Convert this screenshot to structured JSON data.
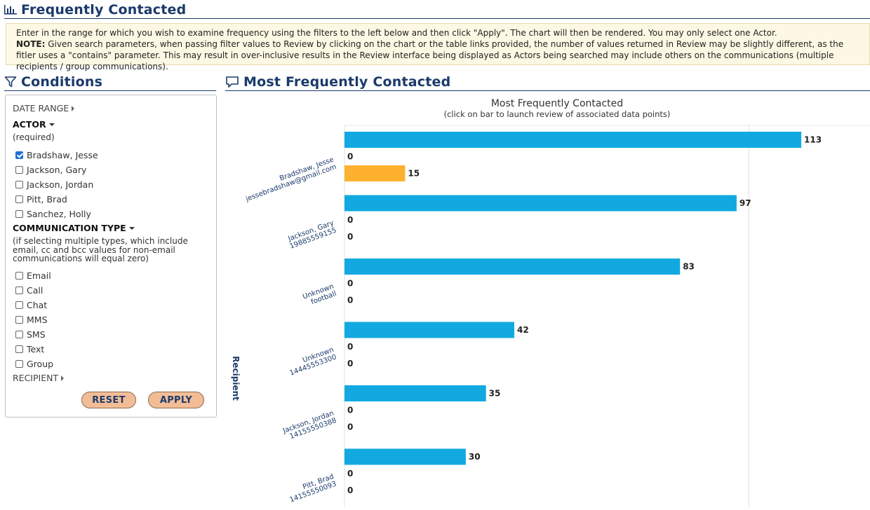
{
  "page_header": {
    "title": "Frequently Contacted",
    "icon": "bar-chart-icon"
  },
  "info": {
    "line1": "Enter in the range for which you wish to examine frequency using the filters to the left below and then click \"Apply\". The chart will then be rendered. You may only select one Actor.",
    "note_label": "NOTE:",
    "note_text": " Given search parameters, when passing filter values to Review by clicking on the chart or the table links provided, the number of values returned in Review may be slightly different, as the fitler uses a \"contains\" parameter. This may result in over-inclusive results in the Review interface being displayed as Actors being searched may include others on the communications (multiple recipients / group communications)."
  },
  "conditions": {
    "title": "Conditions",
    "icon": "filter-icon",
    "date_range_label": "DATE RANGE",
    "actor_label": "ACTOR",
    "actor_note": "(required)",
    "actors": [
      {
        "label": "Bradshaw, Jesse",
        "checked": true
      },
      {
        "label": "Jackson, Gary",
        "checked": false
      },
      {
        "label": "Jackson, Jordan",
        "checked": false
      },
      {
        "label": "Pitt, Brad",
        "checked": false
      },
      {
        "label": "Sanchez, Holly",
        "checked": false
      }
    ],
    "comm_type_label": "COMMUNICATION TYPE",
    "comm_type_note": "(if selecting multiple types, which include email, cc and bcc values for non-email communications will equal zero)",
    "comm_types": [
      {
        "label": "Email",
        "checked": false
      },
      {
        "label": "Call",
        "checked": false
      },
      {
        "label": "Chat",
        "checked": false
      },
      {
        "label": "MMS",
        "checked": false
      },
      {
        "label": "SMS",
        "checked": false
      },
      {
        "label": "Text",
        "checked": false
      },
      {
        "label": "Group",
        "checked": false
      }
    ],
    "recipient_label": "RECIPIENT",
    "reset_label": "RESET",
    "apply_label": "APPLY"
  },
  "chart_panel": {
    "title": "Most Frequently Contacted",
    "icon": "comment-icon"
  },
  "chart_data": {
    "type": "bar",
    "orientation": "horizontal",
    "title": "Most Frequently Contacted",
    "subtitle": "(click on bar to launch review of associated data points)",
    "ylabel": "Recipient",
    "xlim": [
      0,
      130
    ],
    "grid": true,
    "categories": [
      {
        "line1": "Bradshaw, Jesse",
        "line2": "jessebradshaw@gmail.com"
      },
      {
        "line1": "Jackson, Gary",
        "line2": "19885559155"
      },
      {
        "line1": "Unknown",
        "line2": "football"
      },
      {
        "line1": "Unknown",
        "line2": "14445553300"
      },
      {
        "line1": "Jackson, Jordan",
        "line2": "14155550388"
      },
      {
        "line1": "Pitt, Brad",
        "line2": "14155550093"
      }
    ],
    "series": [
      {
        "color": "#12a9e0",
        "values": [
          113,
          97,
          83,
          42,
          35,
          30
        ]
      },
      {
        "color": "#888888",
        "values": [
          0,
          0,
          0,
          0,
          0,
          0
        ]
      },
      {
        "color": "#fdb12f",
        "values": [
          15,
          0,
          0,
          0,
          0,
          0
        ]
      }
    ]
  }
}
